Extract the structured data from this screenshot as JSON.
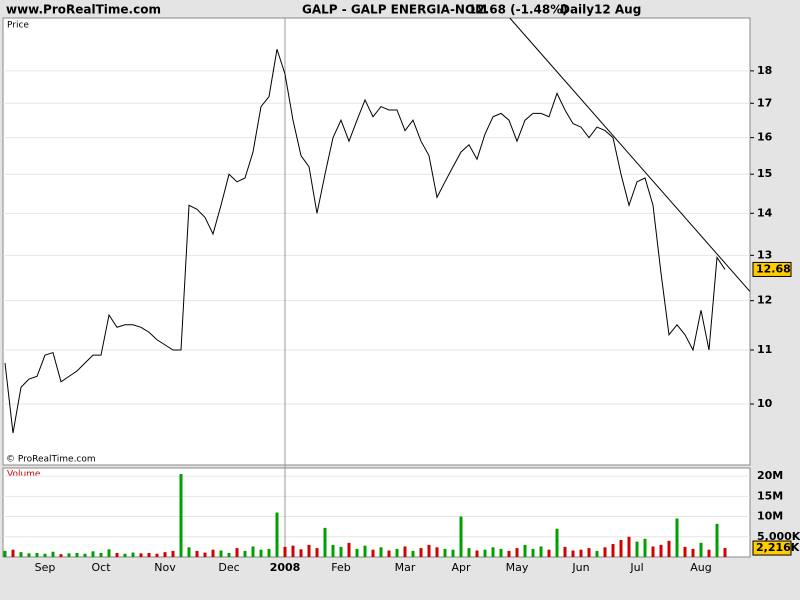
{
  "header": {
    "site": "www.ProRealTime.com",
    "title": "GALP - GALP ENERGIA-NOM",
    "change": "12.68 (-1.48%)",
    "period": "Daily",
    "date": "12 Aug"
  },
  "chart_data": [
    {
      "type": "line",
      "label": "Price",
      "watermark": "© ProRealTime.com",
      "log_scale": true,
      "grid": true,
      "color": "#000000",
      "ylim": [
        8.98,
        19.76
      ],
      "yticks": [
        10,
        11,
        12,
        13,
        14,
        15,
        16,
        17,
        18
      ],
      "values": [
        10.75,
        9.5,
        10.3,
        10.45,
        10.5,
        10.9,
        10.95,
        10.4,
        10.5,
        10.6,
        10.75,
        10.9,
        10.9,
        11.7,
        11.45,
        11.5,
        11.5,
        11.45,
        11.35,
        11.2,
        11.1,
        11.0,
        11.0,
        14.2,
        14.1,
        13.9,
        13.5,
        14.2,
        15.0,
        14.8,
        14.9,
        15.6,
        16.9,
        17.2,
        18.7,
        17.9,
        16.5,
        15.5,
        15.2,
        14.0,
        15.0,
        16.0,
        16.5,
        15.9,
        16.5,
        17.1,
        16.6,
        16.9,
        16.8,
        16.8,
        16.2,
        16.5,
        15.9,
        15.5,
        14.4,
        14.8,
        15.2,
        15.6,
        15.8,
        15.4,
        16.1,
        16.6,
        16.7,
        16.5,
        15.9,
        16.5,
        16.7,
        16.7,
        16.6,
        17.3,
        16.8,
        16.4,
        16.3,
        16.0,
        16.3,
        16.2,
        16.0,
        15.0,
        14.2,
        14.8,
        14.9,
        14.2,
        12.6,
        11.3,
        11.5,
        11.3,
        11.0,
        11.8,
        11.0,
        12.95,
        12.68
      ],
      "current": {
        "value": 12.68,
        "label": "12.68"
      },
      "trendline": {
        "x": [
          63.1,
          93.1
        ],
        "y": [
          19.76,
          12.2
        ]
      }
    },
    {
      "type": "bar",
      "label": "Volume",
      "up_color": "#00a000",
      "down_color": "#d00000",
      "ylim": [
        0,
        22
      ],
      "yticks": [
        {
          "value": 5,
          "label": "5,000K"
        },
        {
          "value": 10,
          "label": "10M"
        },
        {
          "value": 15,
          "label": "15M"
        },
        {
          "value": 20,
          "label": "20M"
        }
      ],
      "categories": [
        null,
        null,
        null,
        null,
        null,
        "Sep",
        null,
        null,
        null,
        null,
        null,
        null,
        "Oct",
        null,
        null,
        null,
        null,
        null,
        null,
        null,
        "Nov",
        null,
        null,
        null,
        null,
        null,
        null,
        null,
        "Dec",
        null,
        null,
        null,
        null,
        null,
        null,
        "2008",
        null,
        null,
        null,
        null,
        null,
        null,
        "Feb",
        null,
        null,
        null,
        null,
        null,
        null,
        null,
        "Mar",
        null,
        null,
        null,
        null,
        null,
        null,
        "Apr",
        null,
        null,
        null,
        null,
        null,
        null,
        "May",
        null,
        null,
        null,
        null,
        null,
        null,
        null,
        "Jun",
        null,
        null,
        null,
        null,
        null,
        null,
        "Jul",
        null,
        null,
        null,
        null,
        null,
        null,
        null,
        "Aug",
        null,
        null,
        null
      ],
      "values": [
        1.5,
        1.8,
        1.2,
        0.9,
        1.0,
        0.8,
        1.3,
        0.7,
        0.9,
        1.0,
        0.8,
        1.4,
        1.0,
        1.9,
        1.0,
        0.8,
        1.1,
        0.9,
        1.0,
        0.8,
        1.2,
        1.5,
        20.5,
        2.4,
        1.5,
        1.1,
        1.8,
        1.6,
        1.0,
        2.2,
        1.5,
        2.6,
        1.8,
        2.0,
        11.0,
        2.5,
        2.8,
        1.9,
        3.0,
        2.2,
        7.2,
        3.0,
        2.5,
        3.5,
        2.0,
        2.8,
        1.8,
        2.4,
        1.6,
        2.0,
        2.6,
        1.5,
        2.2,
        3.0,
        2.4,
        2.0,
        1.8,
        10.0,
        2.2,
        1.6,
        1.8,
        2.4,
        2.0,
        1.5,
        2.2,
        3.0,
        2.0,
        2.6,
        1.8,
        7.0,
        2.5,
        1.6,
        1.8,
        2.2,
        1.5,
        2.4,
        3.2,
        4.2,
        5.0,
        3.8,
        4.5,
        2.6,
        3.0,
        4.0,
        9.5,
        2.5,
        2.0,
        3.5,
        1.8,
        8.2,
        2.216
      ],
      "current": {
        "value": 2.216,
        "label": "2,216K"
      }
    }
  ]
}
